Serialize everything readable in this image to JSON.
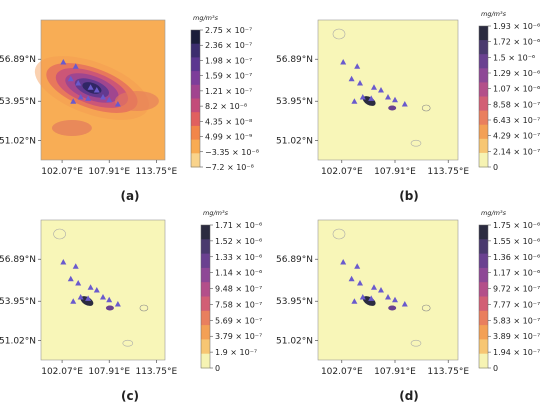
{
  "chart_data": [
    {
      "type": "heatmap",
      "panel_label": "(a)",
      "x_ticks": [
        "102.07°E",
        "107.91°E",
        "113.75°E"
      ],
      "y_ticks": [
        "56.89°N",
        "53.95°N",
        "51.02°N"
      ],
      "colorbar_unit": "mg/m³s",
      "colorbar_ticks": [
        "2.75 × 10⁻⁷",
        "2.36 × 10⁻⁷",
        "1.98 × 10⁻⁷",
        "1.59 × 10⁻⁷",
        "1.21 × 10⁻⁷",
        "8.2 × 10⁻⁸",
        "4.35 × 10⁻⁸",
        "4.99 × 10⁻⁹",
        "−3.35 × 10⁻⁸",
        "−7.2 × 10⁻⁸"
      ],
      "colors": [
        "#1b1d3a",
        "#3c2d6e",
        "#5c3790",
        "#7d3e9a",
        "#a1448f",
        "#c34c7a",
        "#e0605f",
        "#f28649",
        "#f8ab52",
        "#f9d38b"
      ],
      "background": "#f8ad55",
      "stations_count": 12
    },
    {
      "type": "heatmap",
      "panel_label": "(b)",
      "x_ticks": [
        "102.07°E",
        "107.91°E",
        "113.75°E"
      ],
      "y_ticks": [
        "56.89°N",
        "53.95°N",
        "51.02°N"
      ],
      "colorbar_unit": "mg/m³s",
      "colorbar_ticks": [
        "1.93 × 10⁻⁶",
        "1.72 × 10⁻⁶",
        "1.5 × 10⁻⁶",
        "1.29 × 10⁻⁶",
        "1.07 × 10⁻⁶",
        "8.58 × 10⁻⁷",
        "6.43 × 10⁻⁷",
        "4.29 × 10⁻⁷",
        "2.14 × 10⁻⁷",
        "0"
      ],
      "colors": [
        "#2b2b40",
        "#4a3a6e",
        "#6a4190",
        "#8e4896",
        "#b34f8a",
        "#d25f75",
        "#e97f5e",
        "#f3a055",
        "#f7c673",
        "#f6f3b3"
      ],
      "background": "#f8f6b8",
      "stations_count": 12
    },
    {
      "type": "heatmap",
      "panel_label": "(c)",
      "x_ticks": [
        "102.07°E",
        "107.91°E",
        "113.75°E"
      ],
      "y_ticks": [
        "56.89°N",
        "53.95°N",
        "51.02°N"
      ],
      "colorbar_unit": "mg/m³s",
      "colorbar_ticks": [
        "1.71 × 10⁻⁶",
        "1.52 × 10⁻⁶",
        "1.33 × 10⁻⁶",
        "1.14 × 10⁻⁶",
        "9.48 × 10⁻⁷",
        "7.58 × 10⁻⁷",
        "5.69 × 10⁻⁷",
        "3.79 × 10⁻⁷",
        "1.9 × 10⁻⁷",
        "0"
      ],
      "colors": [
        "#2b2b40",
        "#4a3a6e",
        "#6a4190",
        "#8e4896",
        "#b34f8a",
        "#d25f75",
        "#e97f5e",
        "#f3a055",
        "#f7c673",
        "#f6f3b3"
      ],
      "background": "#f8f6b8",
      "stations_count": 12
    },
    {
      "type": "heatmap",
      "panel_label": "(d)",
      "x_ticks": [
        "102.07°E",
        "107.91°E",
        "113.75°E"
      ],
      "y_ticks": [
        "56.89°N",
        "53.95°N",
        "51.02°N"
      ],
      "colorbar_unit": "mg/m³s",
      "colorbar_ticks": [
        "1.75 × 10⁻⁶",
        "1.55 × 10⁻⁶",
        "1.36 × 10⁻⁶",
        "1.17 × 10⁻⁶",
        "9.72 × 10⁻⁷",
        "7.77 × 10⁻⁷",
        "5.83 × 10⁻⁷",
        "3.89 × 10⁻⁷",
        "1.94 × 10⁻⁷",
        "0"
      ],
      "colors": [
        "#2b2b40",
        "#4a3a6e",
        "#6a4190",
        "#8e4896",
        "#b34f8a",
        "#d25f75",
        "#e97f5e",
        "#f3a055",
        "#f7c673",
        "#f6f3b3"
      ],
      "background": "#f8f6b8",
      "stations_count": 12
    }
  ]
}
